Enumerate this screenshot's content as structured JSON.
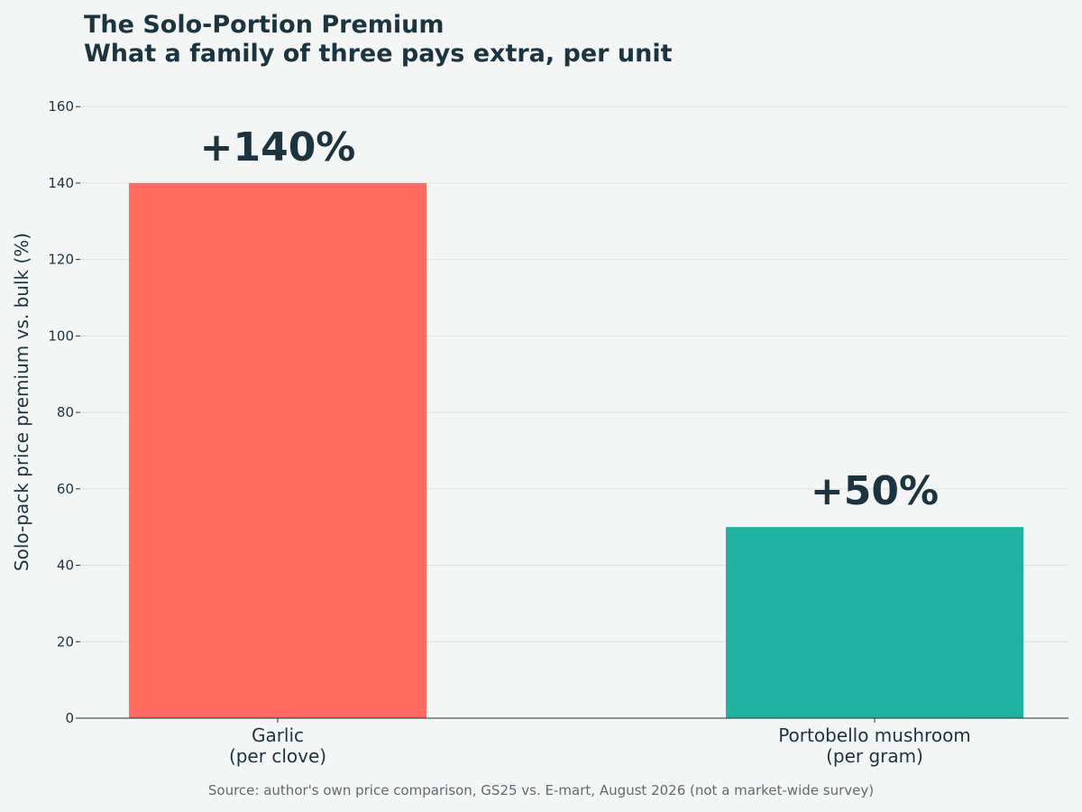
{
  "chart_data": {
    "type": "bar",
    "title": "The Solo-Portion Premium",
    "subtitle": "What a family of three pays extra, per unit",
    "ylabel": "Solo-pack price premium vs. bulk (%)",
    "xlabel": "",
    "categories": [
      [
        "Garlic",
        "(per clove)"
      ],
      [
        "Portobello mushroom",
        "(per gram)"
      ]
    ],
    "values": [
      140,
      50
    ],
    "value_labels": [
      "+140%",
      "+50%"
    ],
    "bar_colors": [
      "#ff6b5e",
      "#20b2a0"
    ],
    "ylim": [
      0,
      165
    ],
    "yticks": [
      0,
      20,
      40,
      60,
      80,
      100,
      120,
      140,
      160
    ],
    "grid": "horizontal",
    "legend": "none"
  },
  "source": "Source: author's own price comparison, GS25 vs. E-mart, August 2026 (not a market-wide survey)"
}
